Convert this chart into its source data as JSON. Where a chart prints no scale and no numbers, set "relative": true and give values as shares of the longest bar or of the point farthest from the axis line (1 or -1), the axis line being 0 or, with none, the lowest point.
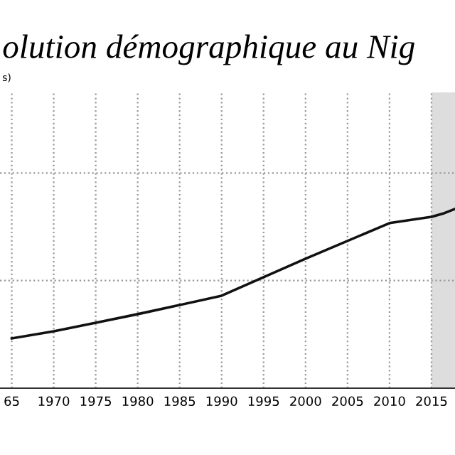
{
  "chart_data": {
    "type": "line",
    "title": "olution démographique au Nig",
    "annotations": [
      "s)"
    ],
    "x": [
      1965,
      1970,
      1975,
      1980,
      1985,
      1990,
      2000,
      2010,
      2015,
      2016.5,
      2017.8
    ],
    "series": [
      {
        "color": "#111111",
        "values": [
          0.278,
          0.317,
          0.365,
          0.413,
          0.464,
          0.516,
          0.722,
          0.921,
          0.956,
          0.976,
          1
        ]
      }
    ],
    "relative": true,
    "xlim": [
      1963.6,
      2017.8
    ],
    "xticks": [
      {
        "value": 1965,
        "label": "65"
      },
      1970,
      1975,
      1980,
      1985,
      1990,
      1995,
      2000,
      2005,
      2010,
      2015
    ],
    "bands": [
      {
        "axis": "x",
        "from": 2015,
        "to": 2017.8,
        "color": "#dddddd"
      }
    ],
    "grid": true,
    "tick_labels": "x",
    "legend": false,
    "marker": "none",
    "line_style": "solid"
  }
}
